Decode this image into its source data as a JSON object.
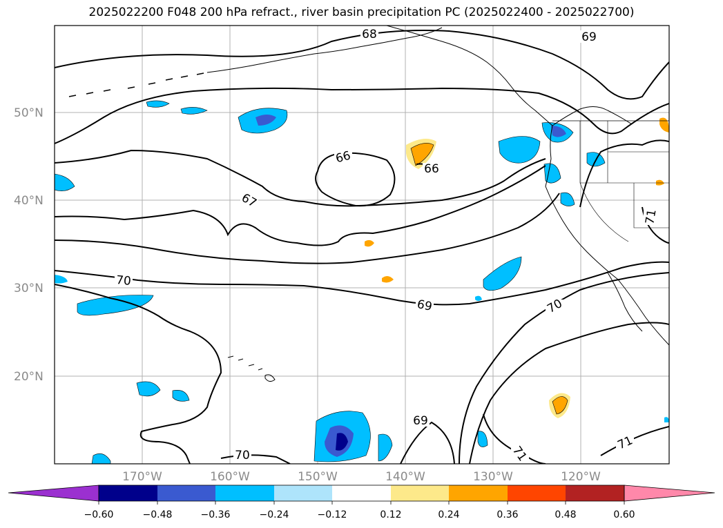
{
  "title": "2025022200 F048 200 hPa refract., river basin precipitation PC (2025022400 - 2025022700)",
  "map": {
    "lat_ticks": [
      "50°N",
      "40°N",
      "30°N",
      "20°N"
    ],
    "lon_ticks": [
      "170°W",
      "160°W",
      "150°W",
      "140°W",
      "130°W",
      "120°W"
    ],
    "contour_labels": [
      "68",
      "69",
      "66",
      "66",
      "67",
      "70",
      "69",
      "70",
      "69",
      "70",
      "71",
      "71",
      "71"
    ],
    "grid": true
  },
  "colorbar": {
    "tick_labels": [
      "−0.60",
      "−0.48",
      "−0.36",
      "−0.24",
      "−0.12",
      "0.12",
      "0.24",
      "0.36",
      "0.48",
      "0.60"
    ],
    "colors": [
      "#9b30d0",
      "#00008b",
      "#3a5ad0",
      "#00bfff",
      "#aee4fb",
      "#ffffff",
      "#fde98a",
      "#ffa500",
      "#ff4500",
      "#b22222",
      "#ff88aa"
    ],
    "extend": "both"
  }
}
